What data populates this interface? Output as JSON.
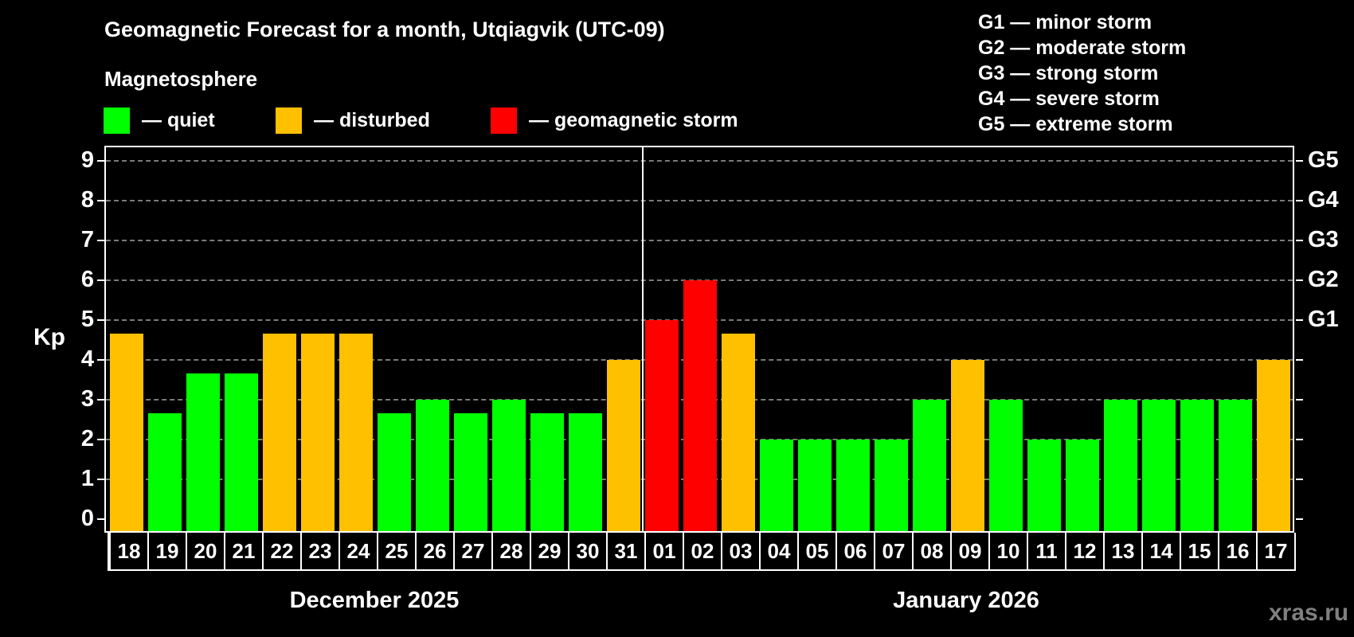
{
  "header": {
    "title": "Geomagnetic Forecast for a month, Utqiagvik (UTC-09)",
    "subtitle": "Magnetosphere"
  },
  "legend": [
    {
      "label": "— quiet",
      "color": "#00ff00"
    },
    {
      "label": "— disturbed",
      "color": "#ffc000"
    },
    {
      "label": "— geomagnetic storm",
      "color": "#ff0000"
    }
  ],
  "g_legend": [
    "G1 — minor storm",
    "G2 — moderate storm",
    "G3 — strong storm",
    "G4 — severe storm",
    "G5 — extreme storm"
  ],
  "axis": {
    "ylabel": "Kp",
    "yticks": [
      "0",
      "1",
      "2",
      "3",
      "4",
      "5",
      "6",
      "7",
      "8",
      "9"
    ],
    "right_labels": [
      {
        "kp": 5,
        "label": "G1"
      },
      {
        "kp": 6,
        "label": "G2"
      },
      {
        "kp": 7,
        "label": "G3"
      },
      {
        "kp": 8,
        "label": "G4"
      },
      {
        "kp": 9,
        "label": "G5"
      }
    ]
  },
  "months": [
    {
      "label": "December 2025"
    },
    {
      "label": "January 2026"
    }
  ],
  "watermark": "xras.ru",
  "colors": {
    "quiet": "#00ff00",
    "disturbed": "#ffc000",
    "storm": "#ff0000",
    "background": "#000000",
    "grid": "#7a7a7a"
  },
  "chart_data": {
    "type": "bar",
    "title": "Geomagnetic Forecast for a month, Utqiagvik (UTC-09)",
    "xlabel": "",
    "ylabel": "Kp",
    "ylim": [
      0,
      9
    ],
    "grid": true,
    "legend_position": "top",
    "categories": [
      "18",
      "19",
      "20",
      "21",
      "22",
      "23",
      "24",
      "25",
      "26",
      "27",
      "28",
      "29",
      "30",
      "31",
      "01",
      "02",
      "03",
      "04",
      "05",
      "06",
      "07",
      "08",
      "09",
      "10",
      "11",
      "12",
      "13",
      "14",
      "15",
      "16",
      "17"
    ],
    "month_groups": [
      {
        "label": "December 2025",
        "from": "18",
        "to": "31"
      },
      {
        "label": "January 2026",
        "from": "01",
        "to": "17"
      }
    ],
    "values": [
      4.67,
      2.67,
      3.67,
      3.67,
      4.67,
      4.67,
      4.67,
      2.67,
      3.0,
      2.67,
      3.0,
      2.67,
      2.67,
      4.0,
      5.0,
      6.0,
      4.67,
      2.0,
      2.0,
      2.0,
      2.0,
      3.0,
      4.0,
      3.0,
      2.0,
      2.0,
      3.0,
      3.0,
      3.0,
      3.0,
      4.0
    ],
    "status": [
      "disturbed",
      "quiet",
      "quiet",
      "quiet",
      "disturbed",
      "disturbed",
      "disturbed",
      "quiet",
      "quiet",
      "quiet",
      "quiet",
      "quiet",
      "quiet",
      "disturbed",
      "storm",
      "storm",
      "disturbed",
      "quiet",
      "quiet",
      "quiet",
      "quiet",
      "quiet",
      "disturbed",
      "quiet",
      "quiet",
      "quiet",
      "quiet",
      "quiet",
      "quiet",
      "quiet",
      "disturbed"
    ],
    "right_axis": {
      "5": "G1",
      "6": "G2",
      "7": "G3",
      "8": "G4",
      "9": "G5"
    }
  }
}
